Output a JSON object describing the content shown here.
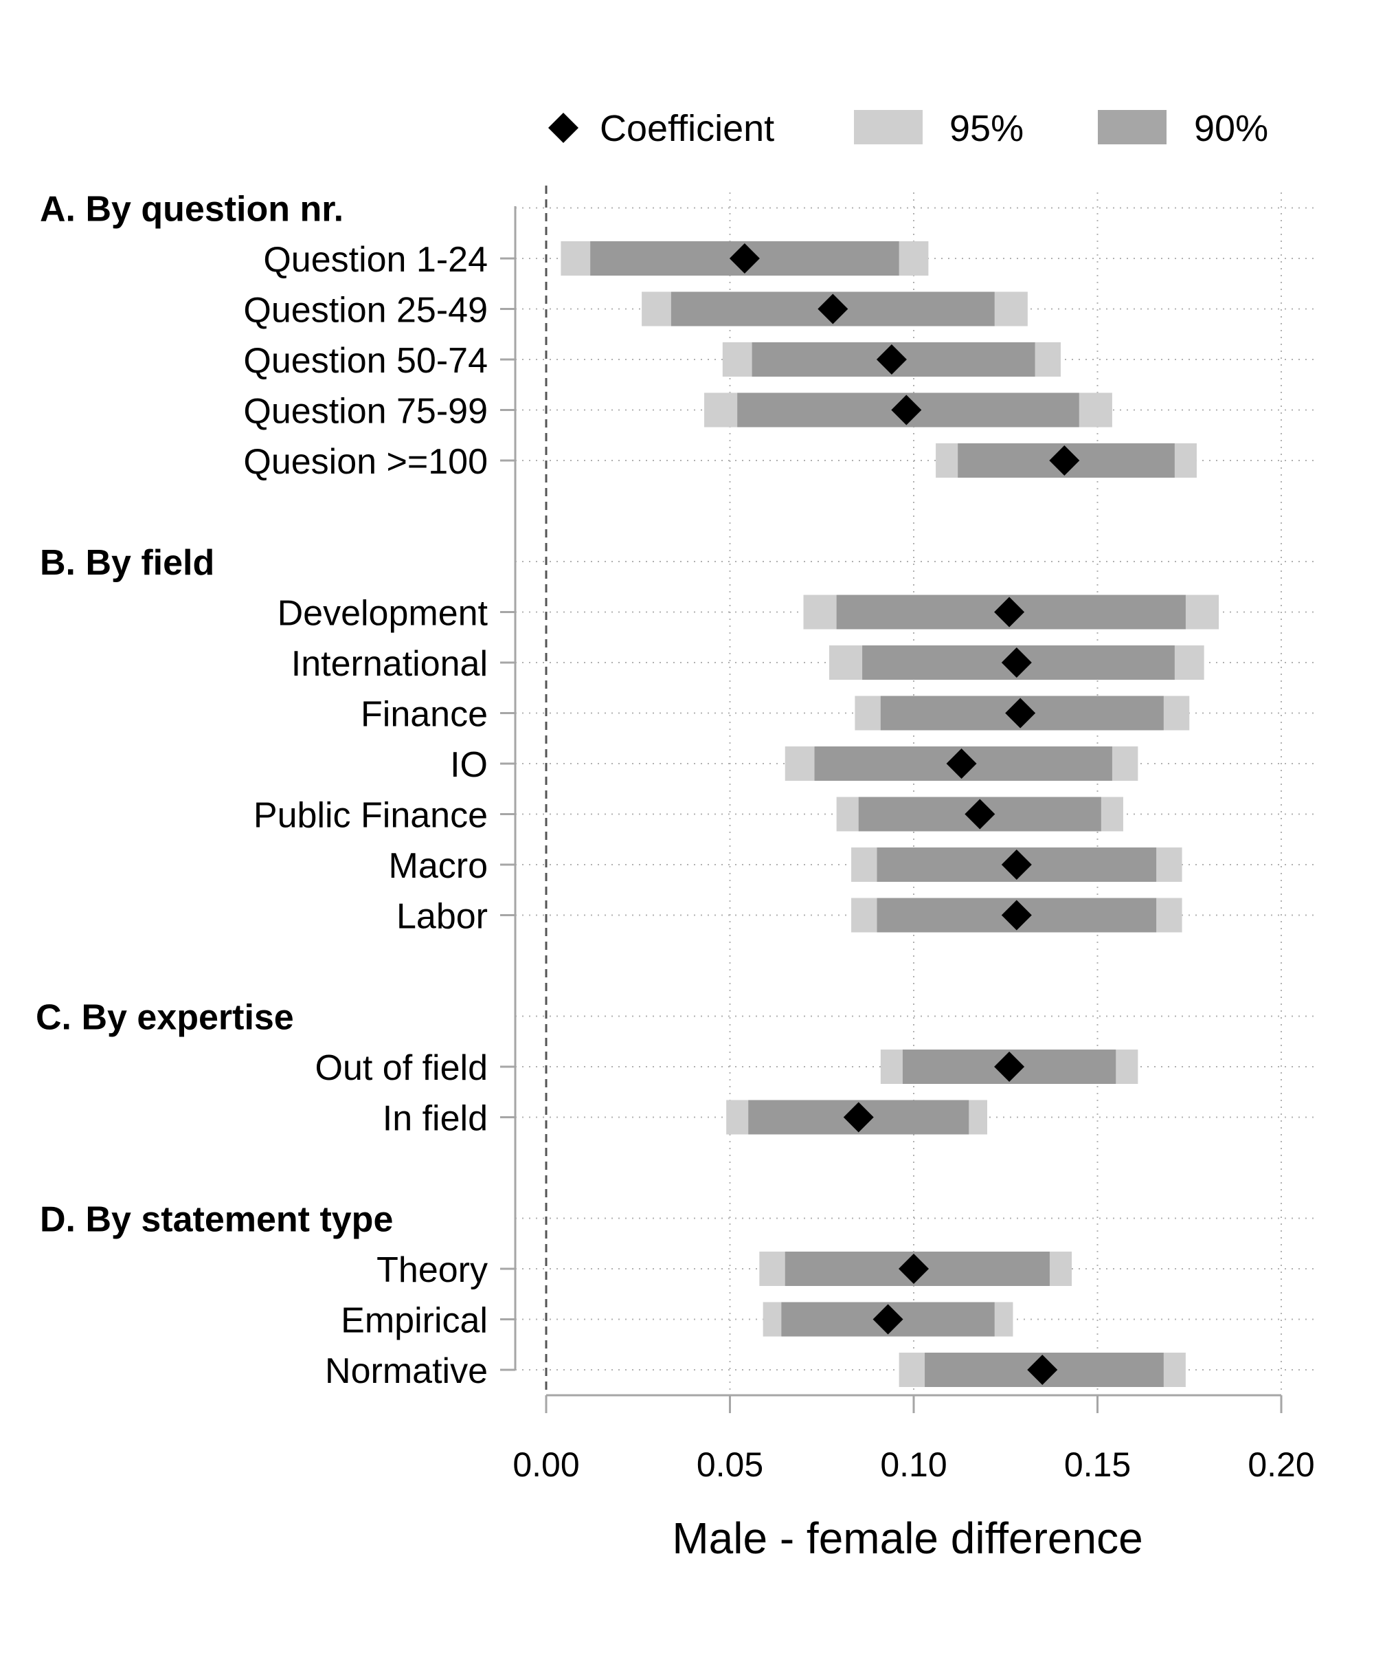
{
  "chart_data": {
    "type": "coefficient_plot",
    "xlabel": "Male - female difference",
    "xlim": [
      0,
      0.2
    ],
    "xticks": [
      "0.00",
      "0.05",
      "0.10",
      "0.15",
      "0.20"
    ],
    "xtick_values": [
      0,
      0.05,
      0.1,
      0.15,
      0.2
    ],
    "reference_line": 0,
    "grid": true,
    "legend": {
      "position": "top",
      "items": [
        {
          "label": "Coefficient",
          "marker": "diamond",
          "color": "#000000"
        },
        {
          "label": "95%",
          "marker": "bar",
          "color": "#cfcfcf"
        },
        {
          "label": "90%",
          "marker": "bar",
          "color": "#a6a6a6"
        }
      ]
    },
    "colors": {
      "coefficient": "#000000",
      "ci95": "#cfcfcf",
      "ci90": "#999999",
      "grid": "#b0b0b0",
      "axis": "#a6a6a6"
    },
    "groups": [
      {
        "title": "A. By question nr.",
        "rows": [
          {
            "label": "Question 1-24",
            "coef": 0.054,
            "ci95": [
              0.004,
              0.104
            ],
            "ci90": [
              0.012,
              0.096
            ]
          },
          {
            "label": "Question 25-49",
            "coef": 0.078,
            "ci95": [
              0.026,
              0.131
            ],
            "ci90": [
              0.034,
              0.122
            ]
          },
          {
            "label": "Question 50-74",
            "coef": 0.094,
            "ci95": [
              0.048,
              0.14
            ],
            "ci90": [
              0.056,
              0.133
            ]
          },
          {
            "label": "Question 75-99",
            "coef": 0.098,
            "ci95": [
              0.043,
              0.154
            ],
            "ci90": [
              0.052,
              0.145
            ]
          },
          {
            "label": "Quesion >=100",
            "coef": 0.141,
            "ci95": [
              0.106,
              0.177
            ],
            "ci90": [
              0.112,
              0.171
            ]
          }
        ]
      },
      {
        "title": "B. By field",
        "rows": [
          {
            "label": "Development",
            "coef": 0.126,
            "ci95": [
              0.07,
              0.183
            ],
            "ci90": [
              0.079,
              0.174
            ]
          },
          {
            "label": "International",
            "coef": 0.128,
            "ci95": [
              0.077,
              0.179
            ],
            "ci90": [
              0.086,
              0.171
            ]
          },
          {
            "label": "Finance",
            "coef": 0.129,
            "ci95": [
              0.084,
              0.175
            ],
            "ci90": [
              0.091,
              0.168
            ]
          },
          {
            "label": "IO",
            "coef": 0.113,
            "ci95": [
              0.065,
              0.161
            ],
            "ci90": [
              0.073,
              0.154
            ]
          },
          {
            "label": "Public Finance",
            "coef": 0.118,
            "ci95": [
              0.079,
              0.157
            ],
            "ci90": [
              0.085,
              0.151
            ]
          },
          {
            "label": "Macro",
            "coef": 0.128,
            "ci95": [
              0.083,
              0.173
            ],
            "ci90": [
              0.09,
              0.166
            ]
          },
          {
            "label": "Labor",
            "coef": 0.128,
            "ci95": [
              0.083,
              0.173
            ],
            "ci90": [
              0.09,
              0.166
            ]
          }
        ]
      },
      {
        "title": "C. By expertise",
        "rows": [
          {
            "label": "Out of field",
            "coef": 0.126,
            "ci95": [
              0.091,
              0.161
            ],
            "ci90": [
              0.097,
              0.155
            ]
          },
          {
            "label": "In field",
            "coef": 0.085,
            "ci95": [
              0.049,
              0.12
            ],
            "ci90": [
              0.055,
              0.115
            ]
          }
        ]
      },
      {
        "title": "D. By statement type",
        "rows": [
          {
            "label": "Theory",
            "coef": 0.1,
            "ci95": [
              0.058,
              0.143
            ],
            "ci90": [
              0.065,
              0.137
            ]
          },
          {
            "label": "Empirical",
            "coef": 0.093,
            "ci95": [
              0.059,
              0.127
            ],
            "ci90": [
              0.064,
              0.122
            ]
          },
          {
            "label": "Normative",
            "coef": 0.135,
            "ci95": [
              0.096,
              0.174
            ],
            "ci90": [
              0.103,
              0.168
            ]
          }
        ]
      }
    ]
  }
}
